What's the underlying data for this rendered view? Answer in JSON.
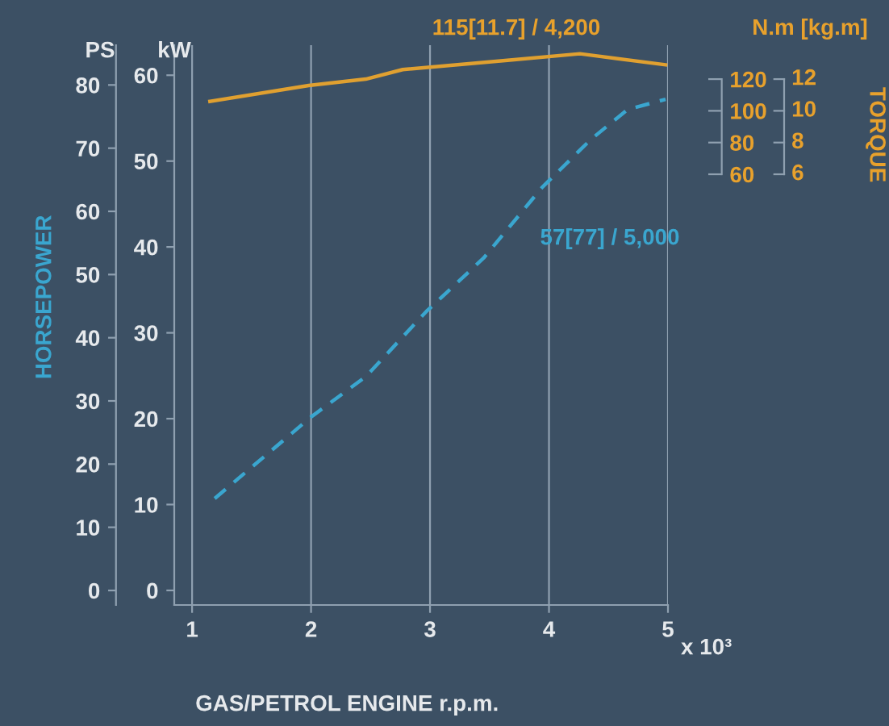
{
  "chart_data": {
    "type": "line",
    "xlabel": "GAS/PETROL ENGINE r.p.m.",
    "y2label": "HORSEPOWER",
    "y3label": "TORQUE",
    "series": [
      {
        "color": "#3aa6cf",
        "line_style": "dashed",
        "x": [
          1.19,
          2.0,
          2.46,
          2.97,
          3.45,
          3.94,
          4.35,
          4.66,
          4.98
        ],
        "values": [
          10.7,
          20.2,
          24.9,
          32.5,
          38.7,
          46.9,
          52.5,
          56.0,
          57.2
        ]
      },
      {
        "color": "#e0a030",
        "line_style": "solid",
        "axis": "y3",
        "x": [
          1.15,
          1.98,
          2.46,
          2.77,
          3.67,
          4.26,
          4.98
        ],
        "values": [
          106,
          116,
          120,
          126,
          132,
          136,
          129
        ]
      }
    ],
    "xlim": [
      0.85,
      5
    ],
    "xticks": [
      1,
      2,
      3,
      4,
      5
    ],
    "ylim": [
      -1.7,
      63.5
    ],
    "yticks": [
      0,
      10,
      20,
      30,
      40,
      50,
      60
    ],
    "y2lim": [
      -2.3,
      86.3
    ],
    "y2ticks": [
      0,
      10,
      20,
      30,
      40,
      50,
      60,
      70,
      80
    ],
    "y3lim": [
      -211.6,
      141.4
    ],
    "y3ticks": [
      60,
      80,
      100,
      120
    ],
    "grid": "x",
    "annotations": [
      "115[11.7] / 4,200",
      "N.m [kg.m]",
      "PS",
      "kW",
      "57[77] / 5,000",
      "x 10³",
      "12",
      "10",
      "8",
      "6"
    ]
  }
}
